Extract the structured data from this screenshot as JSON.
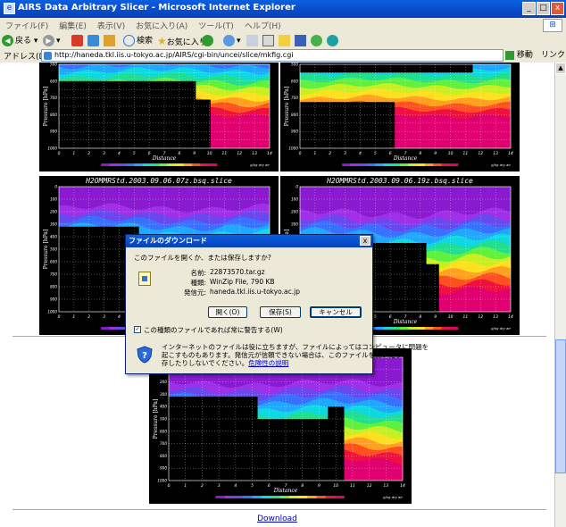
{
  "window": {
    "title": "AIRS Data Arbitrary Slicer - Microsoft Internet Explorer",
    "minimize": "_",
    "maximize": "□",
    "close": "x"
  },
  "menu": [
    "ファイル(F)",
    "編集(E)",
    "表示(V)",
    "お気に入り(A)",
    "ツール(T)",
    "ヘルプ(H)"
  ],
  "toolbar": {
    "back": "戻る",
    "search": "検索",
    "favorites": "お気に入り"
  },
  "address": {
    "label": "アドレス(D)",
    "url": "http://haneda.tkl.iis.u-tokyo.ac.jp/AIRS/cgi-bin/uncei/slice/mkfig.cgi",
    "go": "移動",
    "links": "リンク »"
  },
  "plots": {
    "plot3_title": "H2OMMRStd.2003.09.06.07z.bsq.slice",
    "plot4_title": "H2OMMRStd.2003.09.06.19z.bsq.slice",
    "y_label": "Pressure [hPa]",
    "x_label": "Distance",
    "x_ticks": [
      "0",
      "1",
      "2",
      "3",
      "4",
      "5",
      "6",
      "7",
      "8",
      "9",
      "10",
      "11",
      "12",
      "13",
      "14"
    ],
    "y_ticks": [
      "0",
      "100",
      "200",
      "300",
      "400",
      "500",
      "600",
      "700",
      "800",
      "900",
      "1000"
    ],
    "colorbar_caption": "g/kg dry air"
  },
  "download_link": "Download",
  "dialog": {
    "title": "ファイルのダウンロード",
    "close": "x",
    "question": "このファイルを開くか、または保存しますか?",
    "name_label": "名前:",
    "name_value": "22873570.tar.gz",
    "type_label": "種類:",
    "type_value": "WinZip File, 790 KB",
    "from_label": "発信元:",
    "from_value": "haneda.tkl.iis.u-tokyo.ac.jp",
    "open_button": "開く(O)",
    "save_button": "保存(S)",
    "cancel_button": "キャンセル",
    "checkbox_label": "この種類のファイルであれば常に警告する(W)",
    "warning_line1": "インターネットのファイルは役に立ちますが、ファイルによってはコンピュータに問題を",
    "warning_line2": "起こすものもあります。発信元が信頼できない場合は、このファイルを開いたり保",
    "warning_line3": "存したりしないでください。",
    "risk_link": "危険性の説明"
  }
}
